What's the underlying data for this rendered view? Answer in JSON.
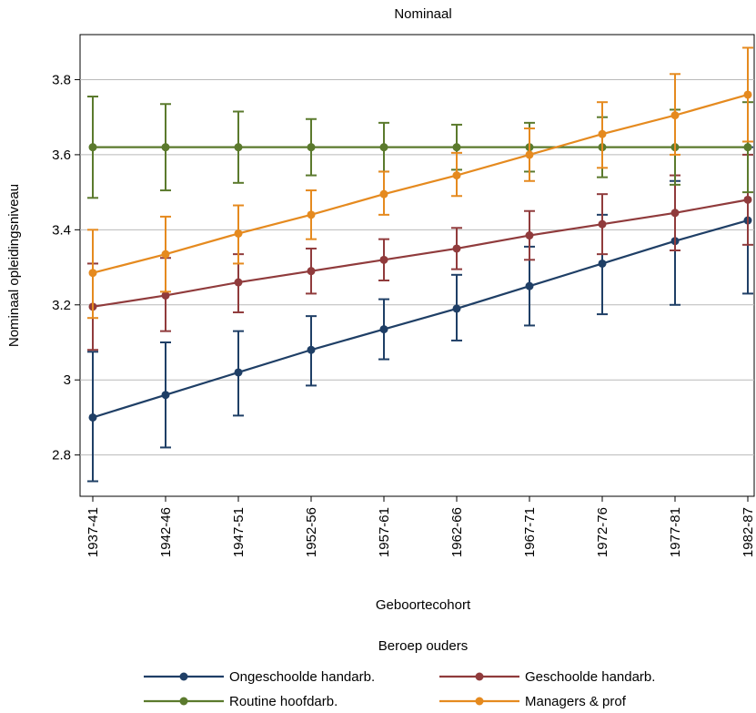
{
  "chart_data": {
    "type": "line",
    "title": "Nominaal",
    "xlabel": "Geboortecohort",
    "ylabel": "Nominaal opleidingsniveau",
    "categories": [
      "1937-41",
      "1942-46",
      "1947-51",
      "1952-56",
      "1957-61",
      "1962-66",
      "1967-71",
      "1972-76",
      "1977-81",
      "1982-87"
    ],
    "ylim": [
      2.69,
      3.92
    ],
    "yticks": [
      2.8,
      3.0,
      3.2,
      3.4,
      3.6,
      3.8
    ],
    "ytick_labels": [
      "2.8",
      "3",
      "3.2",
      "3.4",
      "3.6",
      "3.8"
    ],
    "grid": true,
    "error_bars": true,
    "legend": {
      "title": "Beroep ouders",
      "placement": "bottom"
    },
    "series": [
      {
        "name": "Ongeschoolde handarb.",
        "color": "#1f3f66",
        "values": [
          2.9,
          2.96,
          3.02,
          3.08,
          3.135,
          3.19,
          3.25,
          3.31,
          3.37,
          3.425
        ],
        "lower": [
          2.73,
          2.82,
          2.905,
          2.985,
          3.055,
          3.105,
          3.145,
          3.175,
          3.2,
          3.23
        ],
        "upper": [
          3.075,
          3.1,
          3.13,
          3.17,
          3.215,
          3.28,
          3.355,
          3.44,
          3.53,
          3.62
        ]
      },
      {
        "name": "Geschoolde handarb.",
        "color": "#903b3c",
        "values": [
          3.195,
          3.225,
          3.26,
          3.29,
          3.32,
          3.35,
          3.385,
          3.415,
          3.445,
          3.48
        ],
        "lower": [
          3.08,
          3.13,
          3.18,
          3.23,
          3.265,
          3.295,
          3.32,
          3.335,
          3.345,
          3.36
        ],
        "upper": [
          3.31,
          3.325,
          3.335,
          3.35,
          3.375,
          3.405,
          3.45,
          3.495,
          3.545,
          3.6
        ]
      },
      {
        "name": "Routine hoofdarb.",
        "color": "#5b7a2d",
        "values": [
          3.62,
          3.62,
          3.62,
          3.62,
          3.62,
          3.62,
          3.62,
          3.62,
          3.62,
          3.62
        ],
        "lower": [
          3.485,
          3.505,
          3.525,
          3.545,
          3.555,
          3.56,
          3.555,
          3.54,
          3.52,
          3.5
        ],
        "upper": [
          3.755,
          3.735,
          3.715,
          3.695,
          3.685,
          3.68,
          3.685,
          3.7,
          3.72,
          3.74
        ]
      },
      {
        "name": "Managers & prof",
        "color": "#e58a1f",
        "values": [
          3.285,
          3.335,
          3.39,
          3.44,
          3.495,
          3.545,
          3.6,
          3.655,
          3.705,
          3.76
        ],
        "lower": [
          3.165,
          3.235,
          3.31,
          3.375,
          3.44,
          3.49,
          3.53,
          3.565,
          3.6,
          3.635
        ],
        "upper": [
          3.4,
          3.435,
          3.465,
          3.505,
          3.555,
          3.605,
          3.67,
          3.74,
          3.815,
          3.885
        ]
      }
    ]
  }
}
